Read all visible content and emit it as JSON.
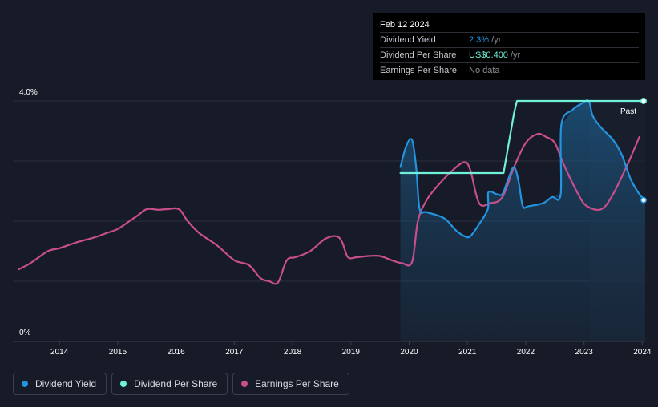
{
  "tooltip": {
    "date": "Feb 12 2024",
    "rows": [
      {
        "label": "Dividend Yield",
        "value": "2.3%",
        "unit": " /yr",
        "color": "#2394df"
      },
      {
        "label": "Dividend Per Share",
        "value": "US$0.400",
        "unit": " /yr",
        "color": "#6ff0d9"
      },
      {
        "label": "Earnings Per Share",
        "value": "No data",
        "unit": "",
        "color": "#8a8d94"
      }
    ]
  },
  "legend": [
    {
      "label": "Dividend Yield",
      "color": "#2394df"
    },
    {
      "label": "Dividend Per Share",
      "color": "#6ff0d9"
    },
    {
      "label": "Earnings Per Share",
      "color": "#c84f8c"
    }
  ],
  "chart_data": {
    "type": "line",
    "y_top_label": "4.0%",
    "y_bottom_label": "0%",
    "past_label": "Past",
    "xlim": [
      2013.2,
      2024.05
    ],
    "ylim": [
      0,
      4.0
    ],
    "x_ticks": [
      2014,
      2015,
      2016,
      2017,
      2018,
      2019,
      2020,
      2021,
      2022,
      2023,
      2024
    ],
    "x_tick_labels": [
      "2014",
      "2015",
      "2016",
      "2017",
      "2018",
      "2019",
      "2020",
      "2021",
      "2022",
      "2023",
      "2024"
    ],
    "gridlines": [
      4.0,
      3.0,
      2.0,
      1.0
    ],
    "shaded_from": 2019.85,
    "past_from": 2023.1,
    "series": [
      {
        "name": "Dividend Yield",
        "color": "#2394df",
        "x": [
          2019.85,
          2019.95,
          2020.05,
          2020.12,
          2020.18,
          2020.3,
          2020.6,
          2020.8,
          2020.95,
          2021.05,
          2021.2,
          2021.35,
          2021.36,
          2021.5,
          2021.6,
          2021.7,
          2021.8,
          2021.88,
          2021.95,
          2022.05,
          2022.3,
          2022.45,
          2022.6,
          2022.61,
          2022.8,
          2022.95,
          2023.08,
          2023.15,
          2023.3,
          2023.5,
          2023.65,
          2023.8,
          2023.95,
          2024.05
        ],
        "y": [
          2.9,
          3.25,
          3.35,
          2.9,
          2.2,
          2.15,
          2.05,
          1.85,
          1.75,
          1.75,
          1.95,
          2.2,
          2.48,
          2.45,
          2.45,
          2.7,
          2.9,
          2.65,
          2.25,
          2.25,
          2.3,
          2.4,
          2.45,
          3.6,
          3.85,
          3.95,
          4.0,
          3.75,
          3.55,
          3.35,
          3.1,
          2.7,
          2.45,
          2.35
        ]
      },
      {
        "name": "Dividend Per Share",
        "color": "#6ff0d9",
        "x": [
          2019.85,
          2021.62,
          2021.8,
          2021.85,
          2024.05
        ],
        "y": [
          2.8,
          2.8,
          3.8,
          4.0,
          4.0
        ]
      },
      {
        "name": "Earnings Per Share",
        "color": "#c84f8c",
        "x": [
          2013.3,
          2013.5,
          2013.8,
          2014.0,
          2014.3,
          2014.6,
          2014.8,
          2015.0,
          2015.2,
          2015.35,
          2015.5,
          2015.7,
          2015.85,
          2016.05,
          2016.2,
          2016.4,
          2016.7,
          2017.0,
          2017.25,
          2017.45,
          2017.6,
          2017.75,
          2017.9,
          2018.05,
          2018.3,
          2018.55,
          2018.75,
          2018.85,
          2018.95,
          2019.1,
          2019.3,
          2019.5,
          2019.7,
          2019.88,
          2020.05,
          2020.15,
          2020.3,
          2020.5,
          2020.75,
          2020.95,
          2021.05,
          2021.2,
          2021.4,
          2021.6,
          2021.8,
          2022.0,
          2022.2,
          2022.35,
          2022.5,
          2022.65,
          2022.9,
          2023.05,
          2023.3,
          2023.5,
          2023.75,
          2023.95
        ],
        "y": [
          1.2,
          1.3,
          1.5,
          1.55,
          1.65,
          1.73,
          1.8,
          1.87,
          2.0,
          2.1,
          2.2,
          2.19,
          2.2,
          2.2,
          2.0,
          1.8,
          1.6,
          1.35,
          1.27,
          1.05,
          1.0,
          0.98,
          1.35,
          1.4,
          1.5,
          1.7,
          1.75,
          1.65,
          1.4,
          1.4,
          1.42,
          1.42,
          1.35,
          1.3,
          1.32,
          2.0,
          2.35,
          2.6,
          2.85,
          2.98,
          2.85,
          2.3,
          2.3,
          2.4,
          2.9,
          3.3,
          3.45,
          3.4,
          3.3,
          2.95,
          2.45,
          2.25,
          2.2,
          2.45,
          2.95,
          3.4
        ]
      }
    ]
  }
}
